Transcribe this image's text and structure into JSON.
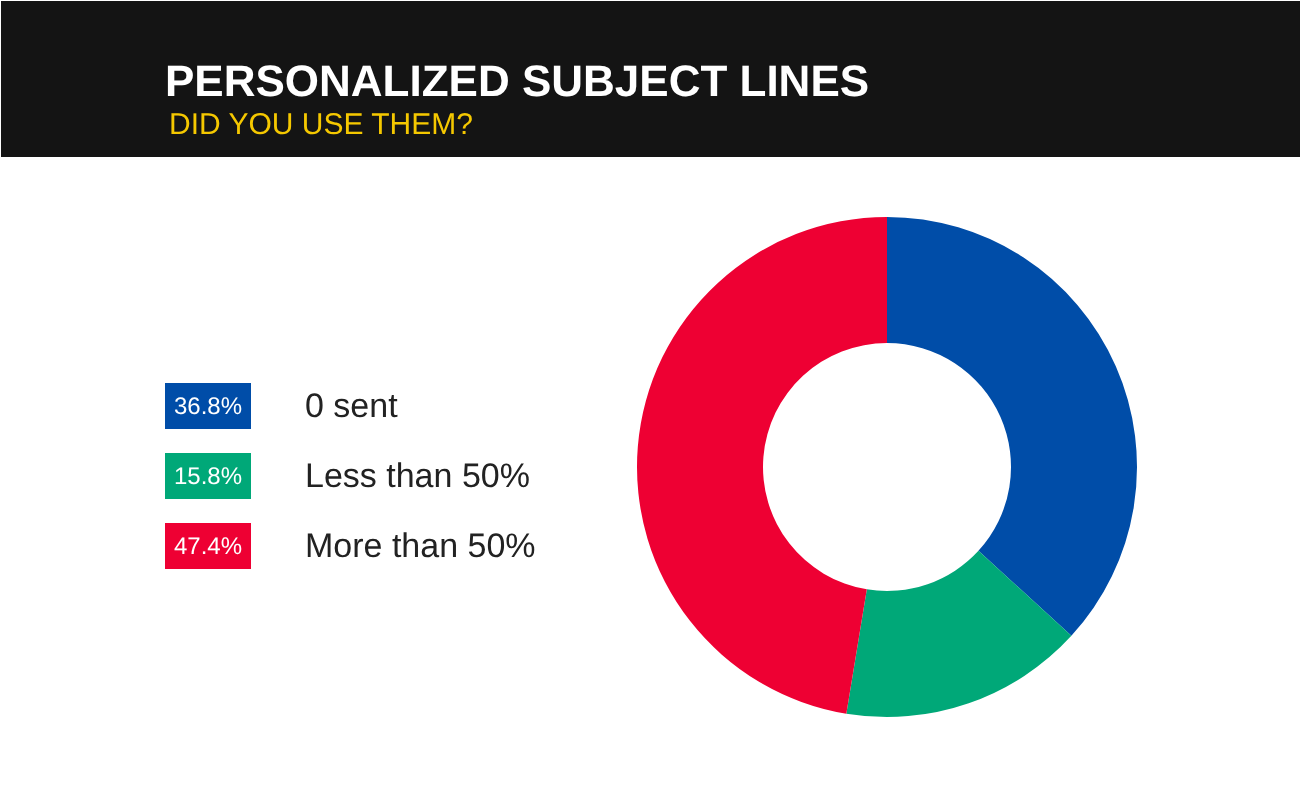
{
  "chart_data": {
    "type": "donut",
    "title": "PERSONALIZED SUBJECT LINES",
    "subtitle": "DID YOU USE THEM?",
    "categories": [
      "0 sent",
      "Less than 50%",
      "More than 50%"
    ],
    "values": [
      36.8,
      15.8,
      47.4
    ],
    "colors": [
      "#004da8",
      "#00a878",
      "#ee0033"
    ],
    "value_labels": [
      "36.8%",
      "15.8%",
      "47.4%"
    ],
    "legend": "left"
  }
}
